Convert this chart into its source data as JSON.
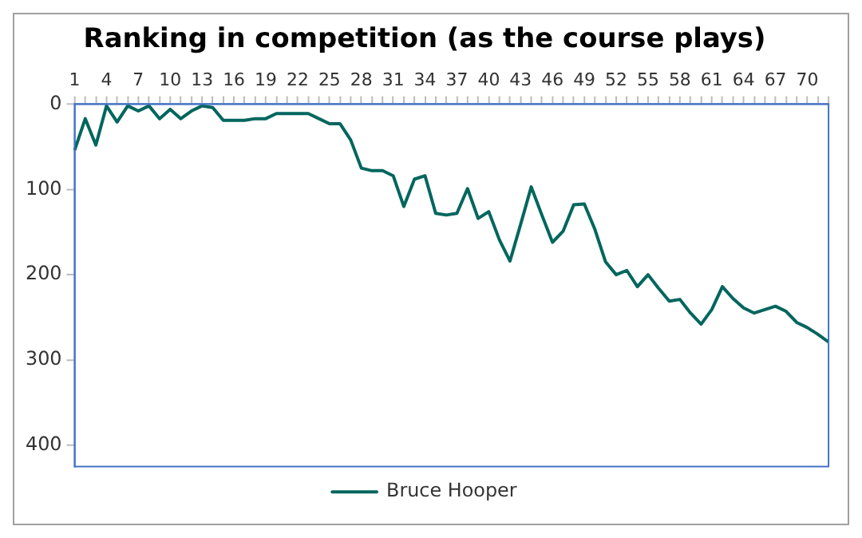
{
  "chart_data": {
    "type": "line",
    "title": "Ranking in competition (as the course plays)",
    "categories": [
      "1",
      null,
      null,
      "4",
      null,
      null,
      "7",
      null,
      null,
      "10",
      null,
      null,
      "13",
      null,
      null,
      "16",
      null,
      null,
      "19",
      null,
      null,
      "22",
      null,
      null,
      "25",
      null,
      null,
      "28",
      null,
      null,
      "31",
      null,
      null,
      "34",
      null,
      null,
      "37",
      null,
      null,
      "40",
      null,
      null,
      "43",
      null,
      null,
      "46",
      null,
      null,
      "49",
      null,
      null,
      "52",
      null,
      null,
      "55",
      null,
      null,
      "58",
      null,
      null,
      "61",
      null,
      null,
      "64",
      null,
      null,
      "67",
      null,
      null,
      "70",
      null,
      null
    ],
    "series": [
      {
        "name": "Bruce Hooper",
        "color": "#00665e",
        "values": [
          54,
          17,
          48,
          2,
          21,
          2,
          8,
          2,
          17,
          6,
          17,
          8,
          2,
          4,
          19,
          19,
          19,
          17,
          17,
          11,
          11,
          11,
          11,
          17,
          23,
          23,
          42,
          75,
          78,
          78,
          84,
          120,
          88,
          84,
          128,
          130,
          128,
          99,
          134,
          126,
          159,
          184,
          141,
          97,
          130,
          162,
          149,
          118,
          117,
          147,
          185,
          200,
          195,
          214,
          200,
          216,
          231,
          229,
          245,
          258,
          241,
          214,
          228,
          239,
          245,
          241,
          237,
          243,
          256,
          262,
          270,
          279
        ]
      }
    ],
    "ylim": [
      425,
      0
    ],
    "yticks": [
      0,
      100,
      200,
      300,
      400
    ],
    "grid": false,
    "legend": "bottom",
    "marker": "none",
    "line_style": "solid"
  }
}
